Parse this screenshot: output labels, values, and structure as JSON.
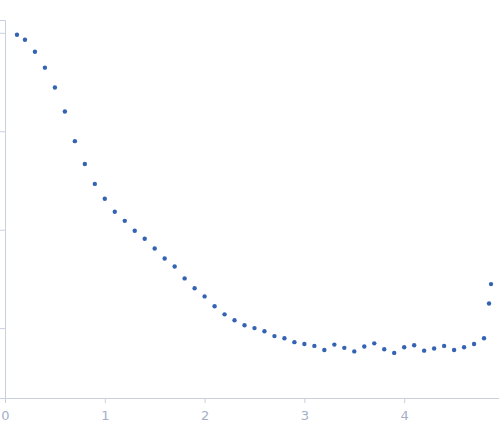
{
  "chart_data": {
    "type": "scatter",
    "x": [
      0.12,
      0.2,
      0.3,
      0.4,
      0.5,
      0.6,
      0.7,
      0.8,
      0.9,
      1.0,
      1.1,
      1.2,
      1.3,
      1.4,
      1.5,
      1.6,
      1.7,
      1.8,
      1.9,
      2.0,
      2.1,
      2.2,
      2.3,
      2.4,
      2.5,
      2.6,
      2.7,
      2.8,
      2.9,
      3.0,
      3.1,
      3.2,
      3.3,
      3.4,
      3.5,
      3.6,
      3.7,
      3.8,
      3.9,
      4.0,
      4.1,
      4.2,
      4.3,
      4.4,
      4.5,
      4.6,
      4.7,
      4.8,
      4.85,
      4.87
    ],
    "values": [
      0.955,
      0.85,
      0.643,
      0.443,
      0.278,
      0.159,
      0.0793,
      0.0465,
      0.0292,
      0.0206,
      0.0152,
      0.0123,
      0.00977,
      0.0081,
      0.00643,
      0.00509,
      0.00423,
      0.0032,
      0.00254,
      0.0021,
      0.00167,
      0.00138,
      0.0012,
      0.00107,
      0.001,
      0.00093,
      0.00083,
      0.00079,
      0.00072,
      0.00069,
      0.00066,
      0.0006,
      0.00068,
      0.00063,
      0.00058,
      0.00065,
      0.0007,
      0.00061,
      0.00056,
      0.00064,
      0.00067,
      0.00059,
      0.00062,
      0.00066,
      0.0006,
      0.00064,
      0.00069,
      0.00079,
      0.00178,
      0.0028
    ],
    "color": "#3563b3",
    "marker": "circle",
    "xlim": [
      0,
      4.95
    ],
    "xticks": [
      0,
      1,
      2,
      3,
      4
    ],
    "ylim": [
      0.000195,
      1.35
    ],
    "yticks": [
      0.001,
      0.01,
      0.1,
      1
    ],
    "log": "y",
    "tick_labels": "x",
    "grid": false
  }
}
